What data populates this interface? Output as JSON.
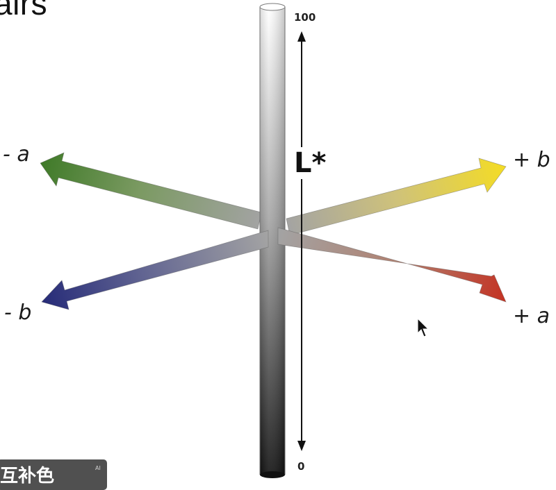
{
  "title_fragment": "airs",
  "axes": {
    "minus_a": "- a",
    "plus_a": "+ a",
    "minus_b": "- b",
    "plus_b": "+ b",
    "lightness": "L*"
  },
  "lightness_scale": {
    "top": "100",
    "bottom": "0"
  },
  "caption": {
    "text": "互补色",
    "ai_mark": "AI"
  },
  "colors": {
    "minus_a_end": "#3f7a28",
    "plus_a_end": "#c43222",
    "minus_b_end": "#262b78",
    "plus_b_end": "#f4dc24",
    "neutral_center": "#a3a3a3",
    "cylinder_top": "#ffffff",
    "cylinder_bottom": "#111111"
  },
  "icons": {
    "cursor": "mouse-pointer-icon"
  }
}
